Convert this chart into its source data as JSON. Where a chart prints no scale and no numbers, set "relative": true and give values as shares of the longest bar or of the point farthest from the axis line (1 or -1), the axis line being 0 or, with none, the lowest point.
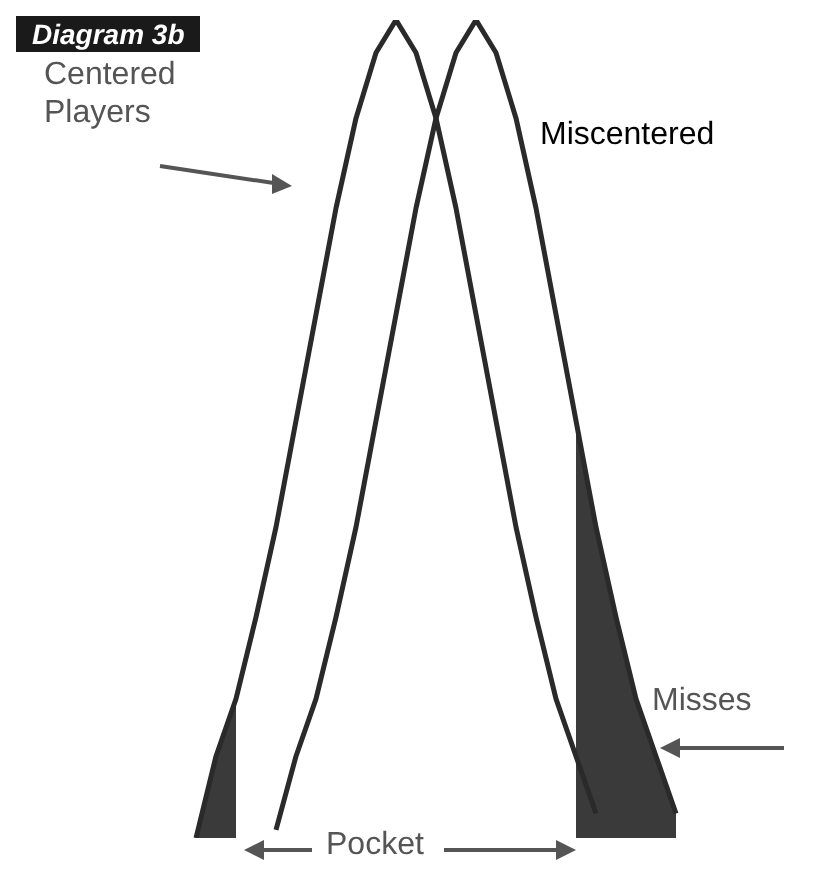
{
  "chart_data": {
    "type": "line",
    "relative": true,
    "title": "Diagram 3b",
    "tick_labels": false,
    "categories": [
      null,
      null,
      null,
      null,
      null,
      null,
      null,
      null,
      null,
      null,
      null,
      null,
      null,
      null,
      null,
      null,
      null,
      null,
      null,
      null,
      null,
      null,
      null,
      null,
      null,
      null,
      null
    ],
    "series": [
      {
        "name": "Centered Players",
        "color": "#2a2a2a",
        "values": [
          null,
          0,
          0.1,
          0.17,
          0.27,
          0.38,
          0.51,
          0.64,
          0.77,
          0.88,
          0.96,
          1,
          0.96,
          0.88,
          0.77,
          0.64,
          0.51,
          0.38,
          0.27,
          0.17,
          0.1,
          0.03,
          null,
          null,
          null,
          null,
          null
        ]
      },
      {
        "name": "Miscentered",
        "color": "#2a2a2a",
        "values": [
          null,
          null,
          null,
          null,
          null,
          0.01,
          0.1,
          0.17,
          0.27,
          0.38,
          0.51,
          0.64,
          0.77,
          0.88,
          0.96,
          1,
          0.96,
          0.88,
          0.77,
          0.64,
          0.51,
          0.38,
          0.27,
          0.17,
          0.1,
          0.03,
          null
        ]
      },
      {
        "type": "area",
        "color": "#3a3a3a",
        "values": [
          null,
          0,
          0.1,
          0.17,
          null,
          null,
          null,
          null,
          null,
          null,
          null,
          null,
          null,
          null,
          null,
          null,
          null,
          null,
          null,
          null,
          null,
          null,
          null,
          null,
          null,
          null,
          null
        ]
      },
      {
        "type": "area",
        "color": "#3a3a3a",
        "values": [
          null,
          null,
          null,
          null,
          null,
          null,
          null,
          null,
          null,
          null,
          null,
          null,
          null,
          null,
          null,
          null,
          null,
          null,
          null,
          null,
          0.51,
          0.38,
          0.27,
          0.17,
          0.1,
          0.03,
          null
        ]
      }
    ],
    "annotations": [
      "Misses",
      "Pocket"
    ]
  }
}
